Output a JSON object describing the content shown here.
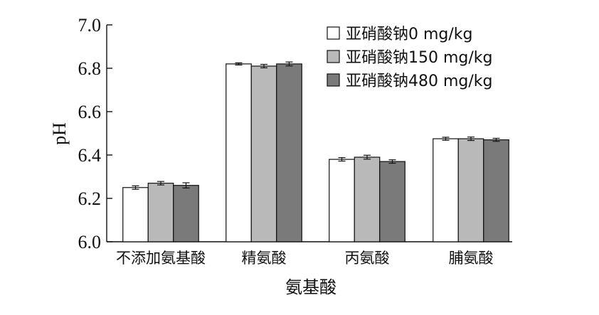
{
  "chart_data": {
    "type": "bar",
    "xlabel": "氨基酸",
    "ylabel": "pH",
    "ylim": [
      6.0,
      7.0
    ],
    "yticks": [
      "6.0",
      "6.2",
      "6.4",
      "6.6",
      "6.8",
      "7.0"
    ],
    "categories": [
      "不添加氨基酸",
      "精氨酸",
      "丙氨酸",
      "脯氨酸"
    ],
    "series": [
      {
        "name": "亚硝酸钠0 mg/kg",
        "color": "#ffffff",
        "values": [
          6.25,
          6.82,
          6.38,
          6.475
        ],
        "errors": [
          0.008,
          0.005,
          0.008,
          0.007
        ]
      },
      {
        "name": "亚硝酸钠150 mg/kg",
        "color": "#b9b9b9",
        "values": [
          6.27,
          6.81,
          6.39,
          6.475
        ],
        "errors": [
          0.008,
          0.008,
          0.009,
          0.008
        ]
      },
      {
        "name": "亚硝酸钠480 mg/kg",
        "color": "#7a7a7a",
        "values": [
          6.26,
          6.82,
          6.37,
          6.47
        ],
        "errors": [
          0.012,
          0.009,
          0.008,
          0.007
        ]
      }
    ],
    "legend_position": "top-right",
    "grid": false
  }
}
